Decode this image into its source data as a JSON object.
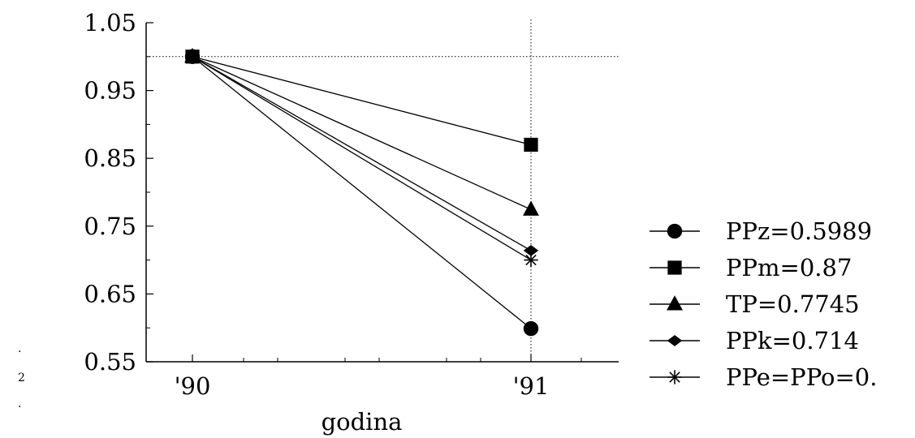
{
  "chart_data": {
    "type": "line",
    "title": "",
    "xlabel": "godina",
    "ylabel": "",
    "categories": [
      "'90",
      "'91"
    ],
    "ylim": [
      0.55,
      1.05
    ],
    "yticks": [
      "1.05",
      "0.95",
      "0.85",
      "0.75",
      "0.65",
      "0.55"
    ],
    "yticks_values": [
      1.05,
      0.95,
      0.85,
      0.75,
      0.65,
      0.55
    ],
    "reference_line_y": 1.0,
    "reference_line_x": "'91",
    "grid": false,
    "legend_position": "right",
    "series": [
      {
        "name": "PPz=0.5989",
        "marker": "circle",
        "values": [
          1.0,
          0.5989
        ]
      },
      {
        "name": "PPm=0.87",
        "marker": "square",
        "values": [
          1.0,
          0.87
        ]
      },
      {
        "name": "TP=0.7745",
        "marker": "triangle",
        "values": [
          1.0,
          0.7745
        ]
      },
      {
        "name": "PPk=0.714",
        "marker": "diamond",
        "values": [
          1.0,
          0.714
        ]
      },
      {
        "name": "PPe=PPo=0.",
        "marker": "asterisk",
        "values": [
          1.0,
          0.7
        ]
      }
    ],
    "edge_marks": [
      "·",
      "2",
      "·"
    ],
    "colors": {
      "line": "#000000",
      "background": "#ffffff"
    }
  }
}
